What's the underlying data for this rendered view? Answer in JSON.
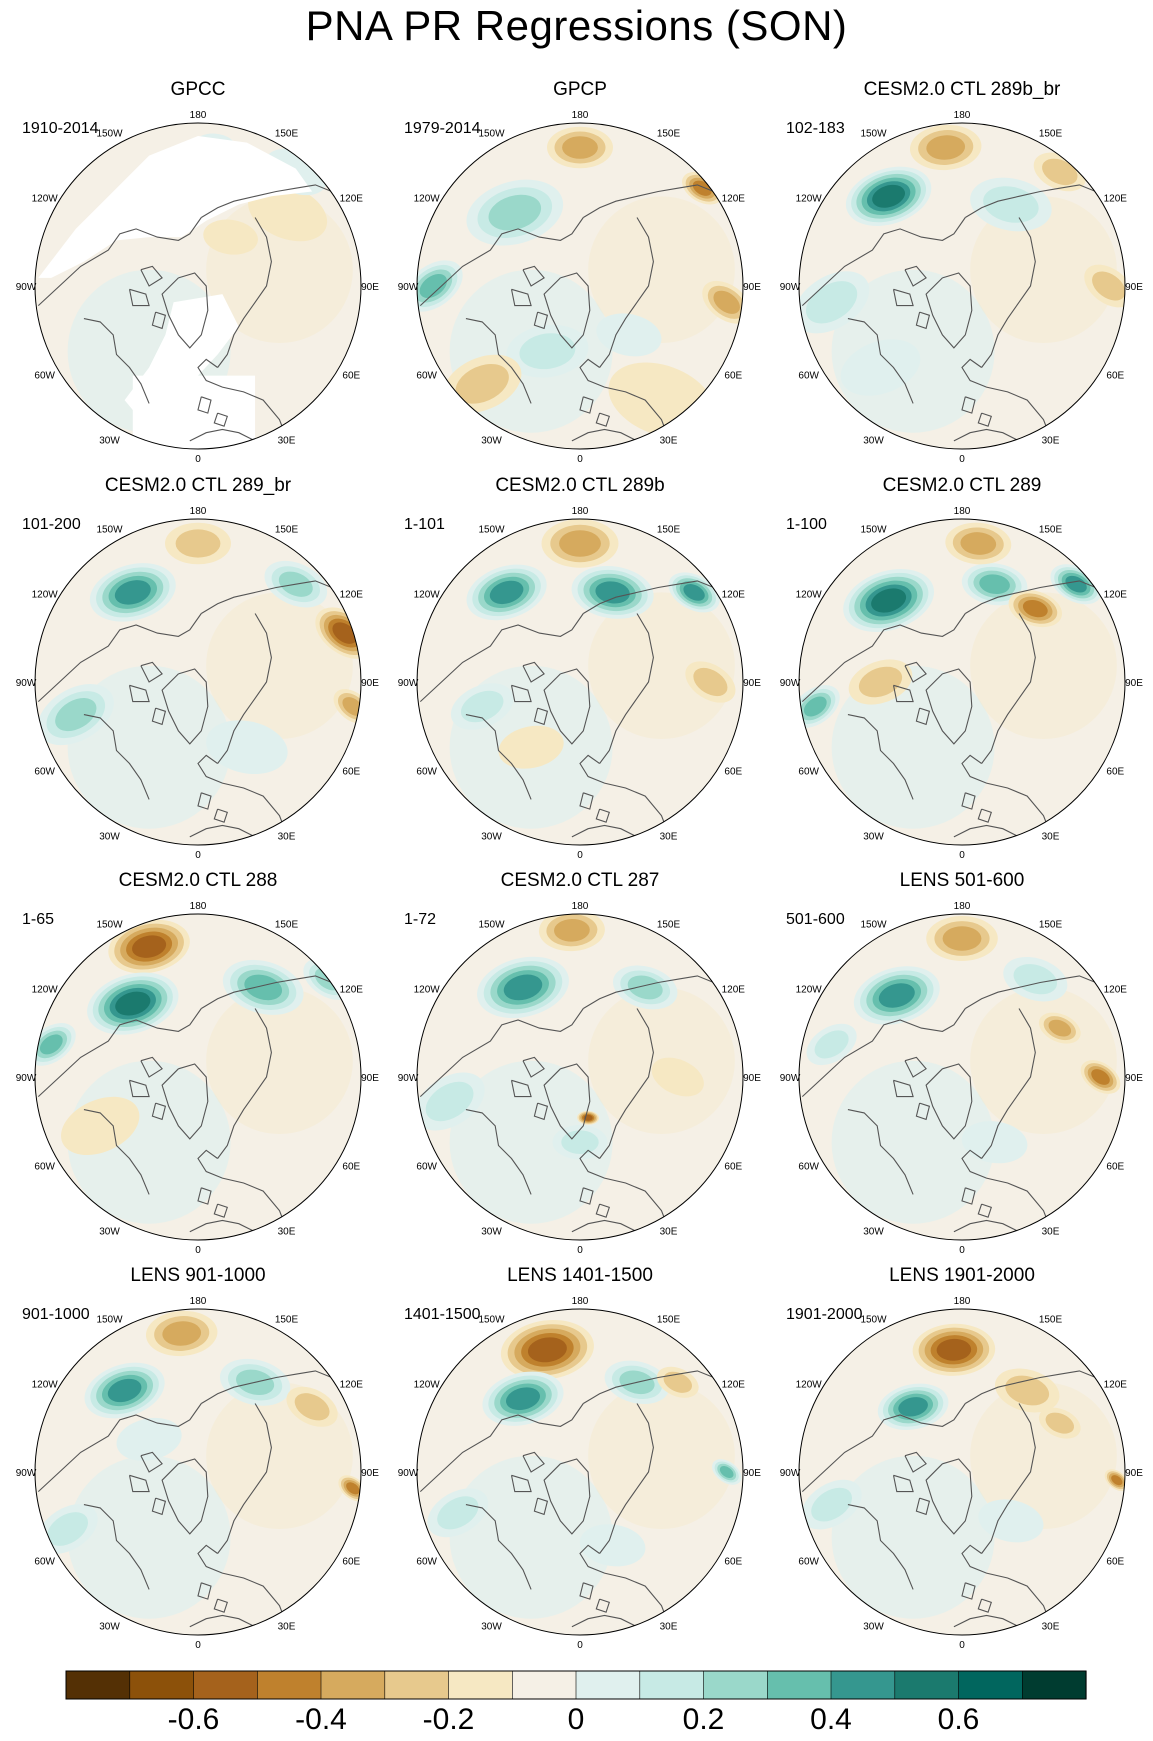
{
  "title": "PNA PR Regressions (SON)",
  "colors": {
    "levels": [
      "#543005",
      "#8c510a",
      "#a5621c",
      "#bf812d",
      "#d6aa5e",
      "#e7c98d",
      "#f6e8c3",
      "#f5f0e6",
      "#e0f0ee",
      "#c7eae5",
      "#9ad8ca",
      "#66bfad",
      "#35978f",
      "#1b7a6e",
      "#01665e",
      "#003c30"
    ],
    "coast": "#555555",
    "land_mask": "#ffffff"
  },
  "colorbar": {
    "labels": [
      "-0.6",
      "-0.4",
      "-0.2",
      "0",
      "0.2",
      "0.4",
      "0.6"
    ]
  },
  "longitude_labels": [
    "180",
    "150E",
    "120E",
    "90E",
    "60E",
    "30E",
    "0",
    "30W",
    "60W",
    "90W",
    "120W",
    "150W"
  ],
  "panels": [
    {
      "title": "GPCC",
      "period": "1910-2014",
      "observed_land_only": true,
      "blobs": [
        [
          0.55,
          -0.45,
          0.15,
          -1
        ],
        [
          0.6,
          -0.7,
          0.12,
          1
        ],
        [
          0.2,
          -0.3,
          0.1,
          -1
        ],
        [
          0.1,
          -0.85,
          0.08,
          1
        ]
      ]
    },
    {
      "title": "GPCP",
      "period": "1979-2014",
      "observed_land_only": false,
      "blobs": [
        [
          0.0,
          -0.85,
          0.12,
          -3
        ],
        [
          -0.4,
          -0.45,
          0.18,
          3
        ],
        [
          -0.9,
          0.0,
          0.12,
          4
        ],
        [
          0.75,
          -0.6,
          0.08,
          -4
        ],
        [
          0.9,
          0.1,
          0.1,
          -3
        ],
        [
          -0.2,
          0.4,
          0.15,
          2
        ],
        [
          0.5,
          0.7,
          0.2,
          -1
        ],
        [
          -0.6,
          0.6,
          0.15,
          -2
        ],
        [
          0.3,
          0.3,
          0.12,
          1
        ]
      ]
    },
    {
      "title": "CESM2.0 CTL 289b_br",
      "period": "102-183",
      "observed_land_only": false,
      "blobs": [
        [
          -0.1,
          -0.85,
          0.13,
          -3
        ],
        [
          -0.45,
          -0.55,
          0.16,
          6
        ],
        [
          0.3,
          -0.5,
          0.15,
          2
        ],
        [
          -0.8,
          0.1,
          0.15,
          2
        ],
        [
          0.9,
          0.0,
          0.1,
          -2
        ],
        [
          0.6,
          -0.7,
          0.1,
          -2
        ],
        [
          -0.5,
          0.5,
          0.15,
          1
        ]
      ]
    },
    {
      "title": "CESM2.0 CTL 289_br",
      "period": "101-200",
      "observed_land_only": false,
      "blobs": [
        [
          -0.4,
          -0.55,
          0.16,
          5
        ],
        [
          0.6,
          -0.6,
          0.12,
          3
        ],
        [
          0.9,
          -0.3,
          0.12,
          -5
        ],
        [
          0.0,
          -0.85,
          0.12,
          -2
        ],
        [
          -0.75,
          0.2,
          0.15,
          3
        ],
        [
          0.95,
          0.15,
          0.08,
          -3
        ],
        [
          0.3,
          0.4,
          0.15,
          1
        ]
      ]
    },
    {
      "title": "CESM2.0 CTL 289b",
      "period": "1-101",
      "observed_land_only": false,
      "blobs": [
        [
          -0.45,
          -0.55,
          0.15,
          5
        ],
        [
          0.2,
          -0.55,
          0.15,
          5
        ],
        [
          0.7,
          -0.55,
          0.1,
          5
        ],
        [
          0.0,
          -0.85,
          0.14,
          -3
        ],
        [
          0.8,
          0.0,
          0.1,
          -2
        ],
        [
          -0.3,
          0.4,
          0.12,
          -1
        ],
        [
          -0.6,
          0.15,
          0.12,
          2
        ]
      ]
    },
    {
      "title": "CESM2.0 CTL 289",
      "period": "1-100",
      "observed_land_only": false,
      "blobs": [
        [
          -0.45,
          -0.5,
          0.17,
          6
        ],
        [
          0.2,
          -0.6,
          0.12,
          4
        ],
        [
          0.7,
          -0.6,
          0.1,
          5
        ],
        [
          0.1,
          -0.85,
          0.12,
          -3
        ],
        [
          0.45,
          -0.45,
          0.1,
          -4
        ],
        [
          -0.9,
          0.15,
          0.1,
          4
        ],
        [
          -0.5,
          0.0,
          0.12,
          -2
        ]
      ]
    },
    {
      "title": "CESM2.0 CTL 288",
      "period": "1-65",
      "observed_land_only": false,
      "blobs": [
        [
          -0.3,
          -0.8,
          0.15,
          -5
        ],
        [
          -0.4,
          -0.45,
          0.17,
          6
        ],
        [
          0.4,
          -0.55,
          0.15,
          4
        ],
        [
          0.8,
          -0.6,
          0.1,
          3
        ],
        [
          -0.9,
          -0.2,
          0.1,
          4
        ],
        [
          -0.6,
          0.3,
          0.15,
          -1
        ]
      ]
    },
    {
      "title": "CESM2.0 CTL 287",
      "period": "1-72",
      "observed_land_only": false,
      "blobs": [
        [
          -0.05,
          -0.9,
          0.12,
          -3
        ],
        [
          -0.35,
          -0.55,
          0.17,
          5
        ],
        [
          0.4,
          -0.55,
          0.12,
          3
        ],
        [
          -0.8,
          0.15,
          0.14,
          2
        ],
        [
          0.0,
          0.4,
          0.1,
          2
        ],
        [
          0.05,
          0.25,
          0.04,
          -5
        ],
        [
          0.6,
          0.0,
          0.1,
          -1
        ]
      ]
    },
    {
      "title": "LENS 501-600",
      "period": "501-600",
      "observed_land_only": false,
      "blobs": [
        [
          0.0,
          -0.85,
          0.13,
          -3
        ],
        [
          -0.4,
          -0.5,
          0.16,
          5
        ],
        [
          0.45,
          -0.6,
          0.12,
          2
        ],
        [
          0.85,
          0.0,
          0.08,
          -4
        ],
        [
          0.6,
          -0.3,
          0.08,
          -3
        ],
        [
          -0.8,
          -0.2,
          0.1,
          2
        ],
        [
          0.2,
          0.4,
          0.12,
          1
        ]
      ]
    },
    {
      "title": "LENS 901-1000",
      "period": "901-1000",
      "observed_land_only": false,
      "blobs": [
        [
          -0.1,
          -0.85,
          0.13,
          -3
        ],
        [
          -0.45,
          -0.5,
          0.15,
          5
        ],
        [
          0.35,
          -0.55,
          0.13,
          3
        ],
        [
          0.7,
          -0.4,
          0.1,
          -2
        ],
        [
          0.95,
          0.1,
          0.06,
          -4
        ],
        [
          -0.8,
          0.35,
          0.12,
          2
        ],
        [
          -0.3,
          -0.2,
          0.12,
          1
        ]
      ]
    },
    {
      "title": "LENS 1401-1500",
      "period": "1401-1500",
      "observed_land_only": false,
      "blobs": [
        [
          -0.2,
          -0.75,
          0.17,
          -5
        ],
        [
          -0.35,
          -0.45,
          0.15,
          5
        ],
        [
          0.35,
          -0.55,
          0.12,
          3
        ],
        [
          0.6,
          -0.55,
          0.08,
          -2
        ],
        [
          -0.75,
          0.25,
          0.12,
          2
        ],
        [
          0.9,
          0.0,
          0.06,
          4
        ],
        [
          0.2,
          0.45,
          0.12,
          1
        ]
      ]
    },
    {
      "title": "LENS 1901-2000",
      "period": "1901-2000",
      "observed_land_only": false,
      "blobs": [
        [
          -0.05,
          -0.75,
          0.15,
          -5
        ],
        [
          -0.3,
          -0.4,
          0.13,
          5
        ],
        [
          0.4,
          -0.5,
          0.12,
          -2
        ],
        [
          0.6,
          -0.3,
          0.08,
          -2
        ],
        [
          -0.8,
          0.2,
          0.12,
          2
        ],
        [
          0.95,
          0.05,
          0.05,
          -4
        ],
        [
          0.3,
          0.3,
          0.12,
          1
        ]
      ]
    }
  ],
  "chart_data": {
    "type": "heatmap",
    "title": "PNA PR Regressions (SON)",
    "projection": "north polar stereographic",
    "panels": [
      "GPCC",
      "GPCP",
      "CESM2.0 CTL 289b_br",
      "CESM2.0 CTL 289_br",
      "CESM2.0 CTL 289b",
      "CESM2.0 CTL 289",
      "CESM2.0 CTL 288",
      "CESM2.0 CTL 287",
      "LENS 501-600",
      "LENS 901-1000",
      "LENS 1401-1500",
      "LENS 1901-2000"
    ],
    "periods": [
      "1910-2014",
      "1979-2014",
      "102-183",
      "101-200",
      "1-101",
      "1-100",
      "1-65",
      "1-72",
      "501-600",
      "901-1000",
      "1401-1500",
      "1901-2000"
    ],
    "colorbar_levels": [
      -0.7,
      -0.6,
      -0.5,
      -0.4,
      -0.3,
      -0.2,
      -0.1,
      0,
      0.1,
      0.2,
      0.3,
      0.4,
      0.5,
      0.6,
      0.7
    ],
    "colorbar_tick_labels": [
      "-0.6",
      "-0.4",
      "-0.2",
      "0",
      "0.2",
      "0.4",
      "0.6"
    ],
    "colormap": "brown (negative) to teal (positive)"
  }
}
